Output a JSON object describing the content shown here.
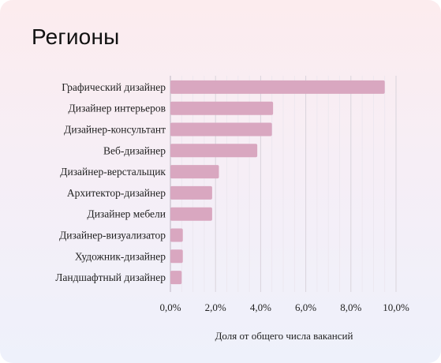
{
  "title": "Регионы",
  "chart_data": {
    "type": "bar",
    "orientation": "horizontal",
    "categories": [
      "Графический дизайнер",
      "Дизайнер интерьеров",
      "Дизайнер-консультант",
      "Веб-дизайнер",
      "Дизайнер-верстальщик",
      "Архитектор-дизайнер",
      "Дизайнер мебели",
      "Дизайнер-визуализатор",
      "Художник-дизайнер",
      "Ландшафтный дизайнер"
    ],
    "values": [
      9.5,
      4.55,
      4.5,
      3.85,
      2.15,
      1.85,
      1.85,
      0.55,
      0.55,
      0.5
    ],
    "xlabel": "Доля от общего числа вакансий",
    "ylabel": "",
    "xlim": [
      0,
      10
    ],
    "xticks": [
      "0,0%",
      "2,0%",
      "4,0%",
      "6,0%",
      "8,0%",
      "10,0%"
    ],
    "grid": true,
    "bar_color": "#d9a7c0"
  }
}
